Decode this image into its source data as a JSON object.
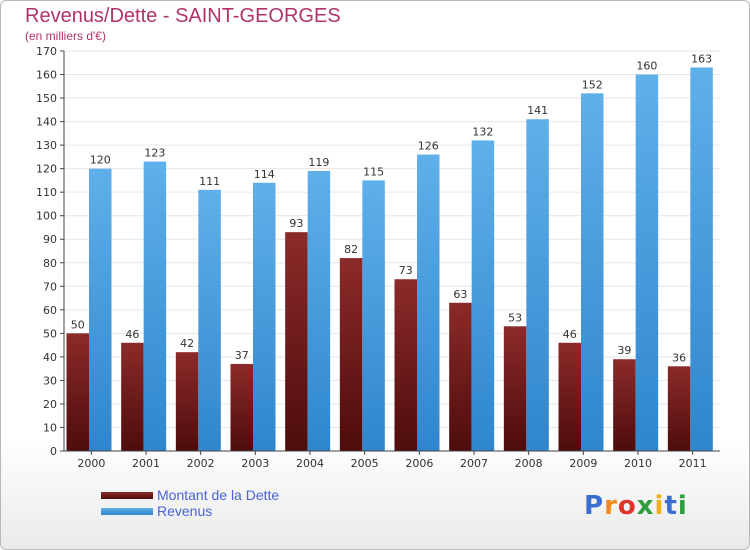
{
  "header": {
    "title": "Revenus/Dette - SAINT-GEORGES",
    "subtitle": "(en milliers d'€)"
  },
  "colors": {
    "debt_top": "#8c2a2a",
    "debt_bottom": "#4e0c0c",
    "revenue_top": "#5fb0ea",
    "revenue_bottom": "#2f86cc",
    "grid": "#e6e6e6",
    "axis": "#444444"
  },
  "chart_data": {
    "type": "bar",
    "categories": [
      "2000",
      "2001",
      "2002",
      "2003",
      "2004",
      "2005",
      "2006",
      "2007",
      "2008",
      "2009",
      "2010",
      "2011"
    ],
    "series": [
      {
        "name": "Montant de la Dette",
        "values": [
          50,
          46,
          42,
          37,
          93,
          82,
          73,
          63,
          53,
          46,
          39,
          36
        ]
      },
      {
        "name": "Revenus",
        "values": [
          120,
          123,
          111,
          114,
          119,
          115,
          126,
          132,
          141,
          152,
          160,
          163
        ]
      }
    ],
    "title": "Revenus/Dette - SAINT-GEORGES",
    "ylabel": "(en milliers d'€)",
    "ylim": [
      0,
      170
    ],
    "yticks": [
      0,
      10,
      20,
      30,
      40,
      50,
      60,
      70,
      80,
      90,
      100,
      110,
      120,
      130,
      140,
      150,
      160,
      170
    ],
    "grid": true,
    "legend": "bottom-left"
  },
  "legend": {
    "items": [
      {
        "label": "Montant de la Dette"
      },
      {
        "label": "Revenus"
      }
    ]
  },
  "logo": {
    "letters": [
      "P",
      "r",
      "o",
      "x",
      "i",
      "t",
      "i"
    ],
    "colors": [
      "#3a6fd0",
      "#f08a1c",
      "#e0342a",
      "#2e9e3e",
      "#f0b01c",
      "#3a6fd0",
      "#2e9e3e"
    ]
  }
}
